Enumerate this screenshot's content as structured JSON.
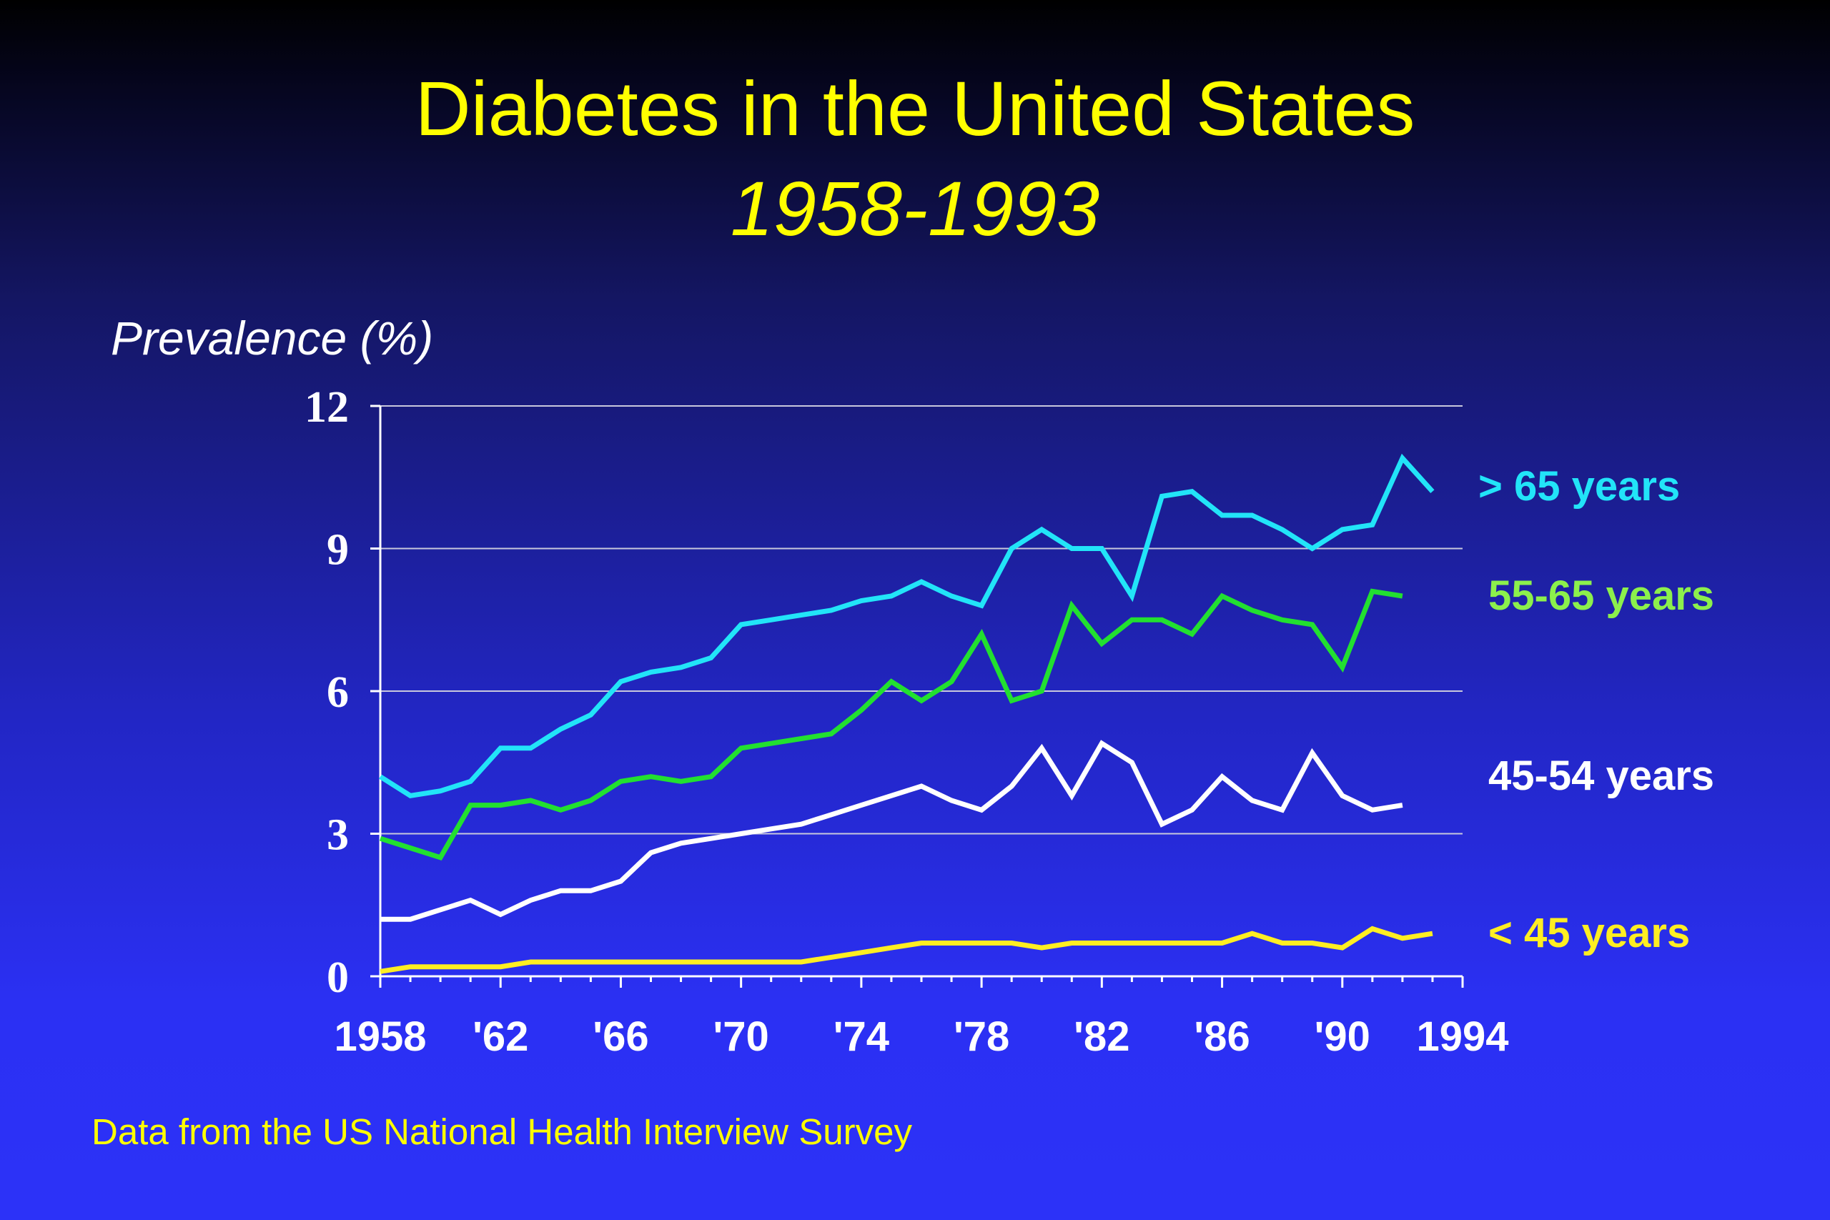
{
  "title": "Diabetes in the United States",
  "subtitle": "1958-1993",
  "ylabel": "Prevalence (%)",
  "source": "Data from the US National Health Interview Survey",
  "chart_data": {
    "type": "line",
    "title": "Diabetes in the United States",
    "subtitle": "1958-1993",
    "xlabel": "",
    "ylabel": "Prevalence (%)",
    "xlim": [
      1958,
      1994
    ],
    "ylim": [
      0,
      12
    ],
    "grid": true,
    "legend_placement": "right, inline labels",
    "x_ticks": [
      {
        "value": 1958,
        "label": "1958"
      },
      {
        "value": 1962,
        "label": "'62"
      },
      {
        "value": 1966,
        "label": "'66"
      },
      {
        "value": 1970,
        "label": "'70"
      },
      {
        "value": 1974,
        "label": "'74"
      },
      {
        "value": 1978,
        "label": "'78"
      },
      {
        "value": 1982,
        "label": "'82"
      },
      {
        "value": 1986,
        "label": "'86"
      },
      {
        "value": 1990,
        "label": "'90"
      },
      {
        "value": 1994,
        "label": "1994"
      }
    ],
    "y_ticks": [
      {
        "value": 0,
        "label": "0"
      },
      {
        "value": 3,
        "label": "3"
      },
      {
        "value": 6,
        "label": "6"
      },
      {
        "value": 9,
        "label": "9"
      },
      {
        "value": 12,
        "label": "12"
      }
    ],
    "series": [
      {
        "name": "> 65 years",
        "color": "#22e4f8",
        "x": [
          1958,
          1959,
          1960,
          1961,
          1962,
          1963,
          1964,
          1965,
          1966,
          1967,
          1968,
          1969,
          1970,
          1971,
          1972,
          1973,
          1974,
          1975,
          1976,
          1977,
          1978,
          1979,
          1980,
          1981,
          1982,
          1983,
          1984,
          1985,
          1986,
          1987,
          1988,
          1989,
          1990,
          1991,
          1992,
          1993
        ],
        "values": [
          4.2,
          3.8,
          3.9,
          4.1,
          4.8,
          4.8,
          5.2,
          5.5,
          6.2,
          6.4,
          6.5,
          6.7,
          7.4,
          7.5,
          7.6,
          7.7,
          7.9,
          8.0,
          8.3,
          8.0,
          7.8,
          9.0,
          9.4,
          9.0,
          9.0,
          8.0,
          10.1,
          10.2,
          9.7,
          9.7,
          9.4,
          9.0,
          9.4,
          9.5,
          10.9,
          10.2
        ]
      },
      {
        "name": "55-65 years",
        "color": "#22e030",
        "x": [
          1958,
          1959,
          1960,
          1961,
          1962,
          1963,
          1964,
          1965,
          1966,
          1967,
          1968,
          1969,
          1970,
          1971,
          1972,
          1973,
          1974,
          1975,
          1976,
          1977,
          1978,
          1979,
          1980,
          1981,
          1982,
          1983,
          1984,
          1985,
          1986,
          1987,
          1988,
          1989,
          1990,
          1991,
          1992
        ],
        "values": [
          2.9,
          2.7,
          2.5,
          3.6,
          3.6,
          3.7,
          3.5,
          3.7,
          4.1,
          4.2,
          4.1,
          4.2,
          4.8,
          4.9,
          5.0,
          5.1,
          5.6,
          6.2,
          5.8,
          6.2,
          7.2,
          5.8,
          6.0,
          7.8,
          7.0,
          7.5,
          7.5,
          7.2,
          8.0,
          7.7,
          7.5,
          7.4,
          6.5,
          8.1,
          8.0
        ]
      },
      {
        "name": "45-54 years",
        "color": "#ffffff",
        "x": [
          1958,
          1959,
          1960,
          1961,
          1962,
          1963,
          1964,
          1965,
          1966,
          1967,
          1968,
          1969,
          1970,
          1971,
          1972,
          1973,
          1974,
          1975,
          1976,
          1977,
          1978,
          1979,
          1980,
          1981,
          1982,
          1983,
          1984,
          1985,
          1986,
          1987,
          1988,
          1989,
          1990,
          1991,
          1992
        ],
        "values": [
          1.2,
          1.2,
          1.4,
          1.6,
          1.3,
          1.6,
          1.8,
          1.8,
          2.0,
          2.6,
          2.8,
          2.9,
          3.0,
          3.1,
          3.2,
          3.4,
          3.6,
          3.8,
          4.0,
          3.7,
          3.5,
          4.0,
          4.8,
          3.8,
          4.9,
          4.5,
          3.2,
          3.5,
          4.2,
          3.7,
          3.5,
          4.7,
          3.8,
          3.5,
          3.6
        ]
      },
      {
        "name": "< 45 years",
        "color": "#ffee22",
        "x": [
          1958,
          1959,
          1960,
          1961,
          1962,
          1963,
          1964,
          1965,
          1966,
          1967,
          1968,
          1969,
          1970,
          1971,
          1972,
          1973,
          1974,
          1975,
          1976,
          1977,
          1978,
          1979,
          1980,
          1981,
          1982,
          1983,
          1984,
          1985,
          1986,
          1987,
          1988,
          1989,
          1990,
          1991,
          1992,
          1993
        ],
        "values": [
          0.1,
          0.2,
          0.2,
          0.2,
          0.2,
          0.3,
          0.3,
          0.3,
          0.3,
          0.3,
          0.3,
          0.3,
          0.3,
          0.3,
          0.3,
          0.4,
          0.5,
          0.6,
          0.7,
          0.7,
          0.7,
          0.7,
          0.6,
          0.7,
          0.7,
          0.7,
          0.7,
          0.7,
          0.7,
          0.9,
          0.7,
          0.7,
          0.6,
          1.0,
          0.8,
          0.9
        ]
      }
    ]
  }
}
